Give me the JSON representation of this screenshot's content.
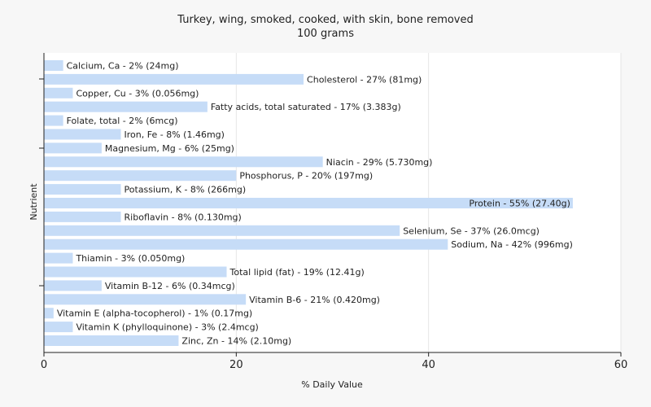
{
  "chart_data": {
    "type": "bar",
    "orientation": "horizontal",
    "title": "Turkey, wing, smoked, cooked, with skin, bone removed",
    "subtitle": "100 grams",
    "xlabel": "% Daily Value",
    "ylabel": "Nutrient",
    "xlim": [
      0,
      60
    ],
    "xticks": [
      0,
      20,
      40,
      60
    ],
    "grid": true,
    "bar_color": "#c6dcf7",
    "categories": [
      "Calcium, Ca",
      "Cholesterol",
      "Copper, Cu",
      "Fatty acids, total saturated",
      "Folate, total",
      "Iron, Fe",
      "Magnesium, Mg",
      "Niacin",
      "Phosphorus, P",
      "Potassium, K",
      "Protein",
      "Riboflavin",
      "Selenium, Se",
      "Sodium, Na",
      "Thiamin",
      "Total lipid (fat)",
      "Vitamin B-12",
      "Vitamin B-6",
      "Vitamin E (alpha-tocopherol)",
      "Vitamin K (phylloquinone)",
      "Zinc, Zn"
    ],
    "values": [
      2,
      27,
      3,
      17,
      2,
      8,
      6,
      29,
      20,
      8,
      55,
      8,
      37,
      42,
      3,
      19,
      6,
      21,
      1,
      3,
      14
    ],
    "labels": [
      "Calcium, Ca - 2% (24mg)",
      "Cholesterol - 27% (81mg)",
      "Copper, Cu - 3% (0.056mg)",
      "Fatty acids, total saturated - 17% (3.383g)",
      "Folate, total - 2% (6mcg)",
      "Iron, Fe - 8% (1.46mg)",
      "Magnesium, Mg - 6% (25mg)",
      "Niacin - 29% (5.730mg)",
      "Phosphorus, P - 20% (197mg)",
      "Potassium, K - 8% (266mg)",
      "Protein - 55% (27.40g)",
      "Riboflavin - 8% (0.130mg)",
      "Selenium, Se - 37% (26.0mcg)",
      "Sodium, Na - 42% (996mg)",
      "Thiamin - 3% (0.050mg)",
      "Total lipid (fat) - 19% (12.41g)",
      "Vitamin B-12 - 6% (0.34mcg)",
      "Vitamin B-6 - 21% (0.420mg)",
      "Vitamin E (alpha-tocopherol) - 1% (0.17mg)",
      "Vitamin K (phylloquinone) - 3% (2.4mcg)",
      "Zinc, Zn - 14% (2.10mg)"
    ]
  }
}
